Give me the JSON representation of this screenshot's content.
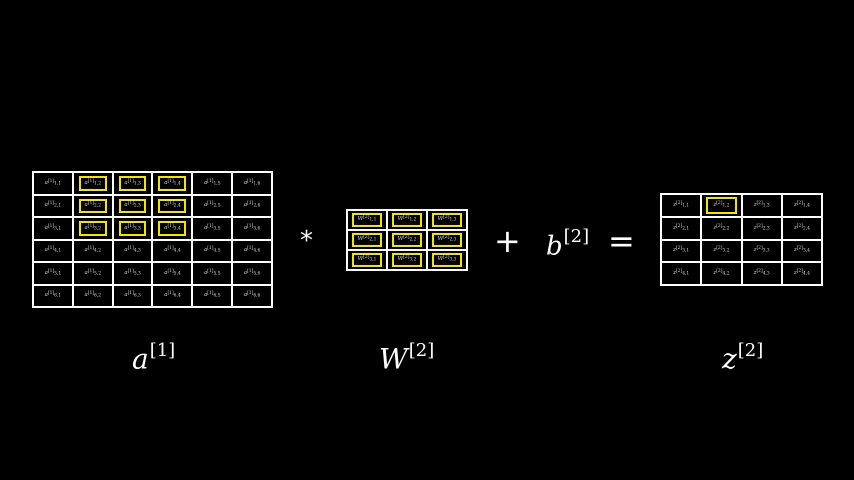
{
  "matrices": {
    "a": {
      "base": "a",
      "superscript": "[1]",
      "rows": 6,
      "cols": 6,
      "highlight": [
        [
          1,
          2
        ],
        [
          1,
          3
        ],
        [
          1,
          4
        ],
        [
          2,
          2
        ],
        [
          2,
          3
        ],
        [
          2,
          4
        ],
        [
          3,
          2
        ],
        [
          3,
          3
        ],
        [
          3,
          4
        ]
      ],
      "label": "a",
      "label_sup": "[1]"
    },
    "w": {
      "base": "W",
      "superscript": "[2]",
      "rows": 3,
      "cols": 3,
      "highlight": [
        [
          1,
          1
        ],
        [
          1,
          2
        ],
        [
          1,
          3
        ],
        [
          2,
          1
        ],
        [
          2,
          2
        ],
        [
          2,
          3
        ],
        [
          3,
          1
        ],
        [
          3,
          2
        ],
        [
          3,
          3
        ]
      ],
      "label": "W",
      "label_sup": "[2]"
    },
    "z": {
      "base": "z",
      "superscript": "[2]",
      "rows": 4,
      "cols": 4,
      "highlight": [
        [
          1,
          2
        ]
      ],
      "label": "z",
      "label_sup": "[2]"
    }
  },
  "operators": {
    "multiply": "*",
    "plus": "+",
    "equals": "="
  },
  "bias": {
    "base": "b",
    "superscript": "[2]"
  },
  "colors": {
    "background": "#000000",
    "grid": "#ffffff",
    "highlight": "#f2e600"
  }
}
